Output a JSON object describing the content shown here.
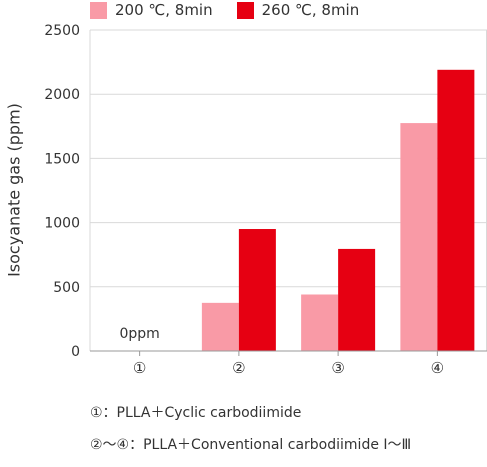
{
  "chart_data": {
    "type": "bar",
    "categories": [
      "①",
      "②",
      "③",
      "④"
    ],
    "series": [
      {
        "name": "200 ℃, 8min",
        "color": "#f99aa6",
        "values": [
          0,
          375,
          440,
          1775
        ]
      },
      {
        "name": "260 ℃, 8min",
        "color": "#e60012",
        "values": [
          0,
          950,
          795,
          2190
        ]
      }
    ],
    "ylabel": "Isocyanate gas (ppm)",
    "xlabel": "",
    "ylim": [
      0,
      2500
    ],
    "yticks": [
      "0",
      "500",
      "1000",
      "1500",
      "2000",
      "2500"
    ],
    "grid": true,
    "legend_position": "top",
    "annotations": [
      {
        "category": "①",
        "text": "0ppm"
      }
    ]
  },
  "notes": [
    "①：PLLA＋Cyclic carbodiimide",
    "②～④：PLLA＋Conventional carbodiimide Ⅰ～Ⅲ"
  ]
}
